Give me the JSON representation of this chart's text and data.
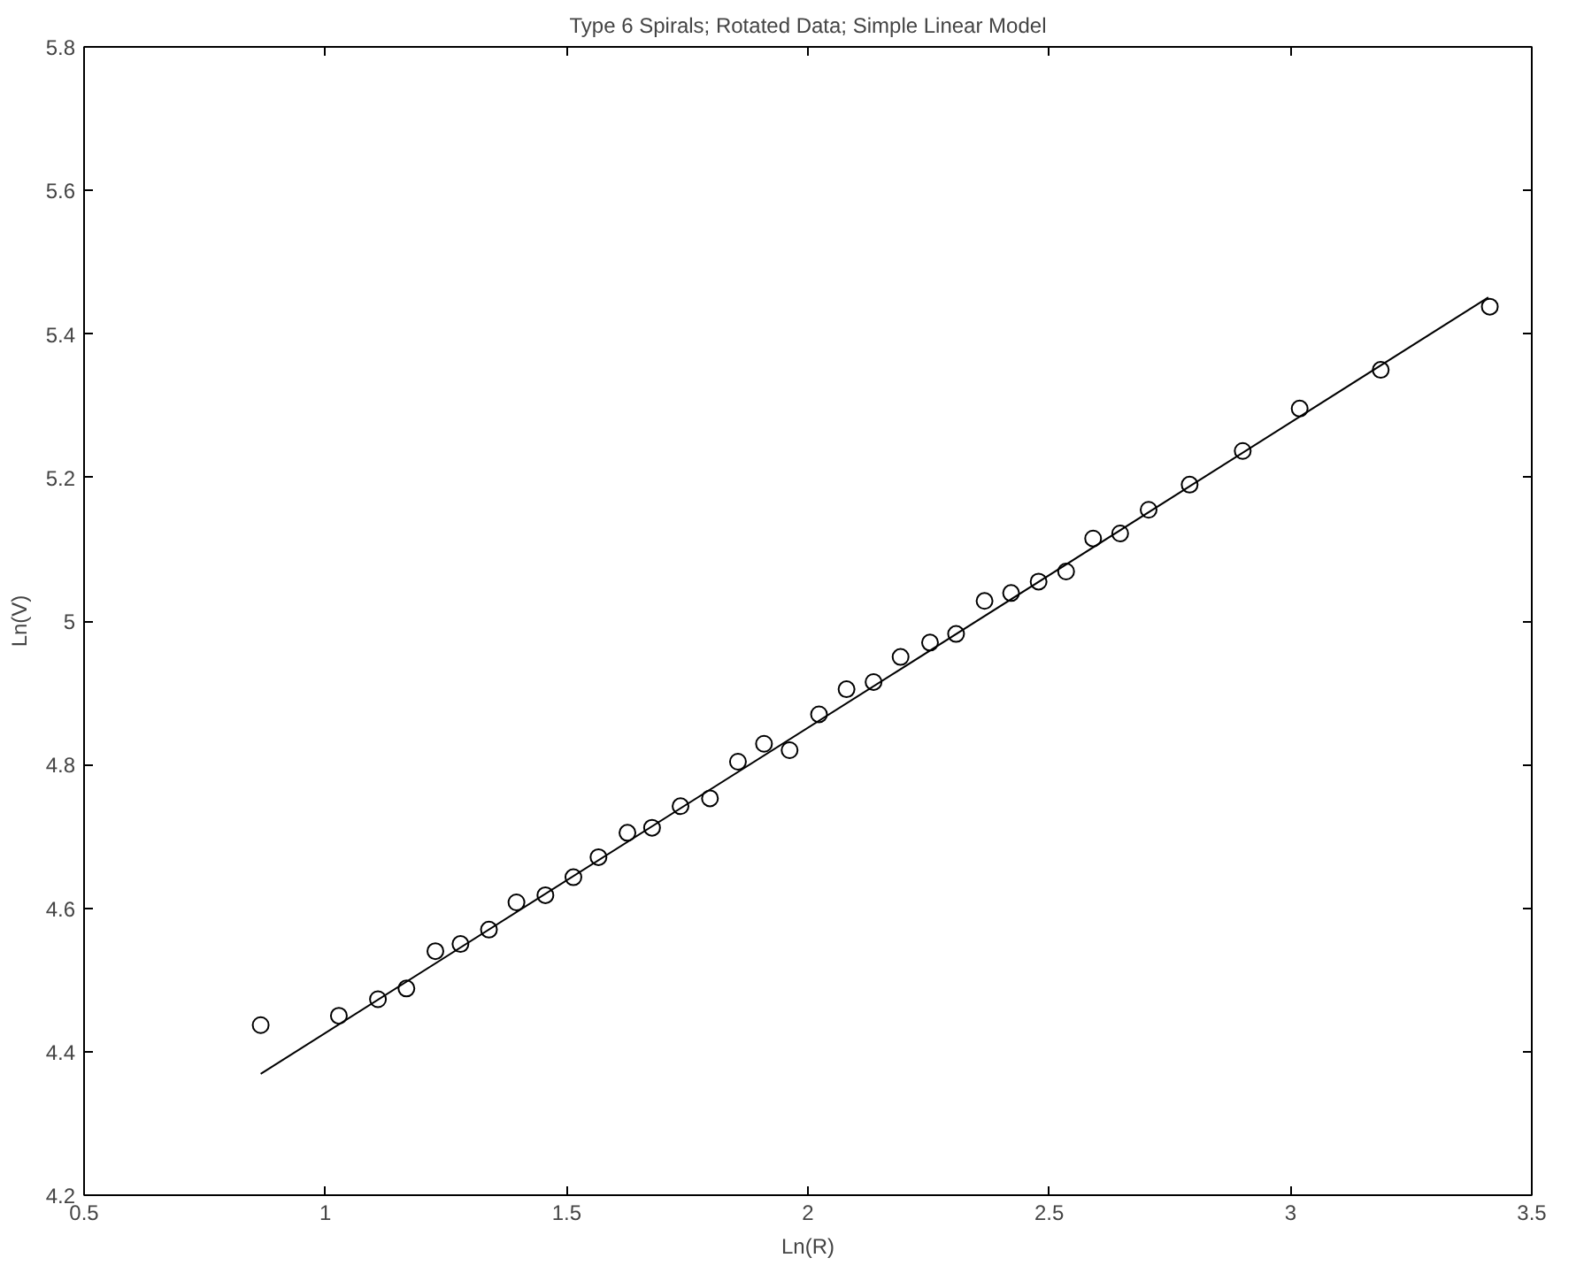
{
  "chart_data": {
    "type": "scatter",
    "title": "Type 6 Spirals; Rotated Data; Simple Linear Model",
    "xlabel": "Ln(R)",
    "ylabel": "Ln(V)",
    "xlim": [
      0.5,
      3.5
    ],
    "ylim": [
      4.2,
      5.8
    ],
    "xticks": [
      0.5,
      1,
      1.5,
      2,
      2.5,
      3,
      3.5
    ],
    "yticks": [
      4.2,
      4.4,
      4.6,
      4.8,
      5,
      5.2,
      5.4,
      5.6,
      5.8
    ],
    "grid": false,
    "series": [
      {
        "marker": "circle",
        "color": "#000000",
        "x": [
          0.866,
          1.028,
          1.109,
          1.168,
          1.228,
          1.28,
          1.339,
          1.396,
          1.456,
          1.514,
          1.566,
          1.626,
          1.677,
          1.736,
          1.797,
          1.855,
          1.909,
          1.962,
          2.023,
          2.08,
          2.136,
          2.192,
          2.253,
          2.307,
          2.366,
          2.421,
          2.478,
          2.535,
          2.591,
          2.647,
          2.706,
          2.791,
          2.901,
          3.019,
          3.187,
          3.413
        ],
        "values": [
          4.437,
          4.45,
          4.473,
          4.488,
          4.54,
          4.55,
          4.57,
          4.608,
          4.618,
          4.643,
          4.671,
          4.705,
          4.712,
          4.742,
          4.753,
          4.804,
          4.829,
          4.82,
          4.87,
          4.905,
          4.915,
          4.95,
          4.97,
          4.982,
          5.028,
          5.039,
          5.055,
          5.069,
          5.115,
          5.122,
          5.155,
          5.19,
          5.237,
          5.296,
          5.35,
          5.438
        ]
      },
      {
        "type": "line",
        "marker": "none",
        "line_style": "solid",
        "color": "#000000",
        "x": [
          0.866,
          3.41
        ],
        "values": [
          4.369,
          5.451
        ]
      }
    ]
  }
}
